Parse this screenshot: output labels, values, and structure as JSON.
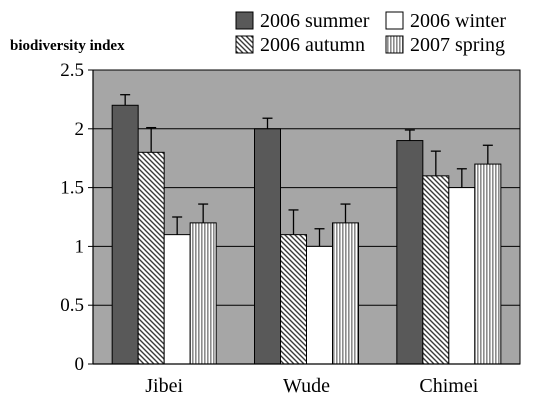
{
  "chart_data": {
    "type": "bar",
    "ylabel": "biodiversity index",
    "xlabel": "",
    "categories": [
      "Jibei",
      "Wude",
      "Chimei"
    ],
    "ylim": [
      0,
      2.5
    ],
    "yticks": [
      "0",
      "0.5",
      "1",
      "1.5",
      "2",
      "2.5"
    ],
    "grid": "horizontal",
    "plot_background": "#a6a6a6",
    "legend_position": "top",
    "series": [
      {
        "name": "2006 summer",
        "values": [
          2.2,
          2.0,
          1.9
        ],
        "errors": [
          0.09,
          0.09,
          0.09
        ],
        "fill": "dark-gray",
        "color": "#595959"
      },
      {
        "name": "2006 autumn",
        "values": [
          1.8,
          1.1,
          1.6
        ],
        "errors": [
          0.21,
          0.21,
          0.21
        ],
        "fill": "diagonal-hatch",
        "color": "#404040"
      },
      {
        "name": "2006 winter",
        "values": [
          1.1,
          1.0,
          1.5
        ],
        "errors": [
          0.15,
          0.15,
          0.16
        ],
        "fill": "white",
        "color": "#ffffff"
      },
      {
        "name": "2007 spring",
        "values": [
          1.2,
          1.2,
          1.7
        ],
        "errors": [
          0.16,
          0.16,
          0.16
        ],
        "fill": "vertical-stripes",
        "color": "#c8c8c8"
      }
    ]
  }
}
